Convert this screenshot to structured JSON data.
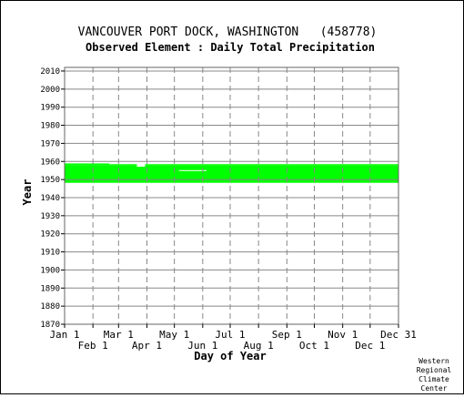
{
  "chart_data": {
    "type": "heatmap",
    "title": "VANCOUVER PORT DOCK, WASHINGTON   (458778)",
    "subtitle": "Observed Element : Daily Total Precipitation",
    "xlabel": "Day of Year",
    "ylabel": "Year",
    "xlim": [
      1,
      366
    ],
    "ylim": [
      1870,
      2012
    ],
    "y_ticks": [
      1870,
      1880,
      1890,
      1900,
      1910,
      1920,
      1930,
      1940,
      1950,
      1960,
      1970,
      1980,
      1990,
      2000,
      2010
    ],
    "x_ticks_upper": [
      {
        "label": "Jan 1",
        "day": 1
      },
      {
        "label": "Mar 1",
        "day": 60
      },
      {
        "label": "May 1",
        "day": 121
      },
      {
        "label": "Jul 1",
        "day": 182
      },
      {
        "label": "Sep 1",
        "day": 244
      },
      {
        "label": "Nov 1",
        "day": 305
      },
      {
        "label": "Dec 31",
        "day": 366
      }
    ],
    "x_ticks_lower": [
      {
        "label": "Feb 1",
        "day": 32
      },
      {
        "label": "Apr 1",
        "day": 91
      },
      {
        "label": "Jun 1",
        "day": 152
      },
      {
        "label": "Aug 1",
        "day": 213
      },
      {
        "label": "Oct 1",
        "day": 274
      },
      {
        "label": "Dec 1",
        "day": 335
      }
    ],
    "grid": true,
    "data_color": "#00ff00",
    "coverage": [
      {
        "day_start": 1,
        "day_end": 366,
        "year_start": 1948.2,
        "year_end": 1957.8
      },
      {
        "day_start": 1,
        "day_end": 50,
        "year_start": 1957.8,
        "year_end": 1958.9
      },
      {
        "day_start": 50,
        "day_end": 80,
        "year_start": 1957.8,
        "year_end": 1958.5
      },
      {
        "day_start": 89,
        "day_end": 366,
        "year_start": 1957.8,
        "year_end": 1958.5
      }
    ],
    "gaps": [
      {
        "day_start": 80,
        "day_end": 89,
        "year_start": 1957.1,
        "year_end": 1957.8
      },
      {
        "day_start": 126,
        "day_end": 156,
        "year_start": 1954.9,
        "year_end": 1955.2
      }
    ]
  },
  "credit": [
    "Western",
    "Regional",
    "Climate",
    "Center"
  ]
}
